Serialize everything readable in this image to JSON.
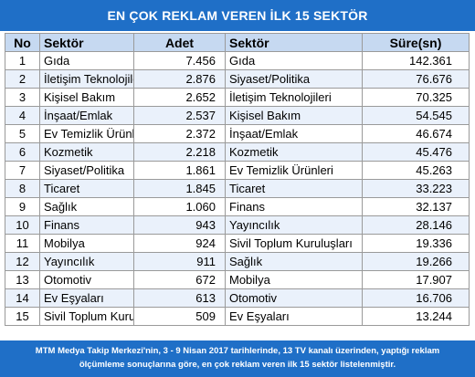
{
  "title": "EN ÇOK REKLAM VEREN İLK 15 SEKTÖR",
  "headers": {
    "no": "No",
    "sektor1": "Sektör",
    "adet": "Adet",
    "sektor2": "Sektör",
    "sure": "Süre(sn)"
  },
  "rows": [
    {
      "no": "1",
      "sektor1": "Gıda",
      "adet": "7.456",
      "sektor2": "Gıda",
      "sure": "142.361"
    },
    {
      "no": "2",
      "sektor1": "İletişim Teknolojileri",
      "adet": "2.876",
      "sektor2": "Siyaset/Politika",
      "sure": "76.676"
    },
    {
      "no": "3",
      "sektor1": "Kişisel Bakım",
      "adet": "2.652",
      "sektor2": "İletişim Teknolojileri",
      "sure": "70.325"
    },
    {
      "no": "4",
      "sektor1": "İnşaat/Emlak",
      "adet": "2.537",
      "sektor2": "Kişisel Bakım",
      "sure": "54.545"
    },
    {
      "no": "5",
      "sektor1": "Ev Temizlik Ürünleri",
      "adet": "2.372",
      "sektor2": "İnşaat/Emlak",
      "sure": "46.674"
    },
    {
      "no": "6",
      "sektor1": "Kozmetik",
      "adet": "2.218",
      "sektor2": "Kozmetik",
      "sure": "45.476"
    },
    {
      "no": "7",
      "sektor1": "Siyaset/Politika",
      "adet": "1.861",
      "sektor2": "Ev Temizlik Ürünleri",
      "sure": "45.263"
    },
    {
      "no": "8",
      "sektor1": "Ticaret",
      "adet": "1.845",
      "sektor2": "Ticaret",
      "sure": "33.223"
    },
    {
      "no": "9",
      "sektor1": "Sağlık",
      "adet": "1.060",
      "sektor2": "Finans",
      "sure": "32.137"
    },
    {
      "no": "10",
      "sektor1": "Finans",
      "adet": "943",
      "sektor2": "Yayıncılık",
      "sure": "28.146"
    },
    {
      "no": "11",
      "sektor1": "Mobilya",
      "adet": "924",
      "sektor2": "Sivil Toplum Kuruluşları",
      "sure": "19.336"
    },
    {
      "no": "12",
      "sektor1": "Yayıncılık",
      "adet": "911",
      "sektor2": "Sağlık",
      "sure": "19.266"
    },
    {
      "no": "13",
      "sektor1": "Otomotiv",
      "adet": "672",
      "sektor2": "Mobilya",
      "sure": "17.907"
    },
    {
      "no": "14",
      "sektor1": "Ev Eşyaları",
      "adet": "613",
      "sektor2": "Otomotiv",
      "sure": "16.706"
    },
    {
      "no": "15",
      "sektor1": "Sivil Toplum Kuruluşları",
      "adet": "509",
      "sektor2": "Ev Eşyaları",
      "sure": "13.244"
    }
  ],
  "footer": {
    "line1": "MTM Medya Takip Merkezi'nin, 3 - 9 Nisan 2017 tarihlerinde, 13 TV kanalı üzerinden,  yaptığı reklam",
    "line2": "ölçümleme sonuçlarına göre, en çok reklam veren ilk 15 sektör  listelenmiştir."
  },
  "colors": {
    "banner": "#1f6fc7",
    "header_row": "#c6d9f1",
    "alt_row": "#eaf1fb",
    "border": "#9a9a9a"
  }
}
